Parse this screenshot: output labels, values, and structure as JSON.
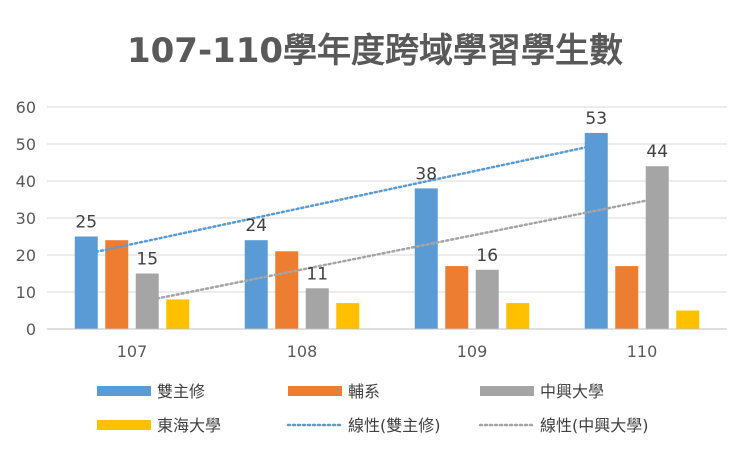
{
  "chart_data": {
    "type": "bar",
    "title": "107-110學年度跨域學習學生數",
    "xlabel": "",
    "ylabel": "",
    "categories": [
      "107",
      "108",
      "109",
      "110"
    ],
    "ylim": [
      0,
      60
    ],
    "yticks": [
      0,
      10,
      20,
      30,
      40,
      50,
      60
    ],
    "grid": true,
    "legend_position": "bottom",
    "series": [
      {
        "name": "雙主修",
        "values": [
          25,
          24,
          38,
          53
        ],
        "color": "#5b9bd5",
        "show_labels": true
      },
      {
        "name": "輔系",
        "values": [
          24,
          21,
          17,
          17
        ],
        "color": "#ed7d31",
        "show_labels": false
      },
      {
        "name": "中興大學",
        "values": [
          15,
          11,
          16,
          44
        ],
        "color": "#a5a5a5",
        "show_labels": true
      },
      {
        "name": "東海大學",
        "values": [
          8,
          7,
          7,
          5
        ],
        "color": "#ffc000",
        "show_labels": false
      }
    ],
    "trendlines": [
      {
        "name": "線性(雙主修)",
        "series": "雙主修",
        "type": "linear",
        "color": "#5b9bd5"
      },
      {
        "name": "線性(中興大學)",
        "series": "中興大學",
        "type": "linear",
        "color": "#a5a5a5"
      }
    ]
  }
}
